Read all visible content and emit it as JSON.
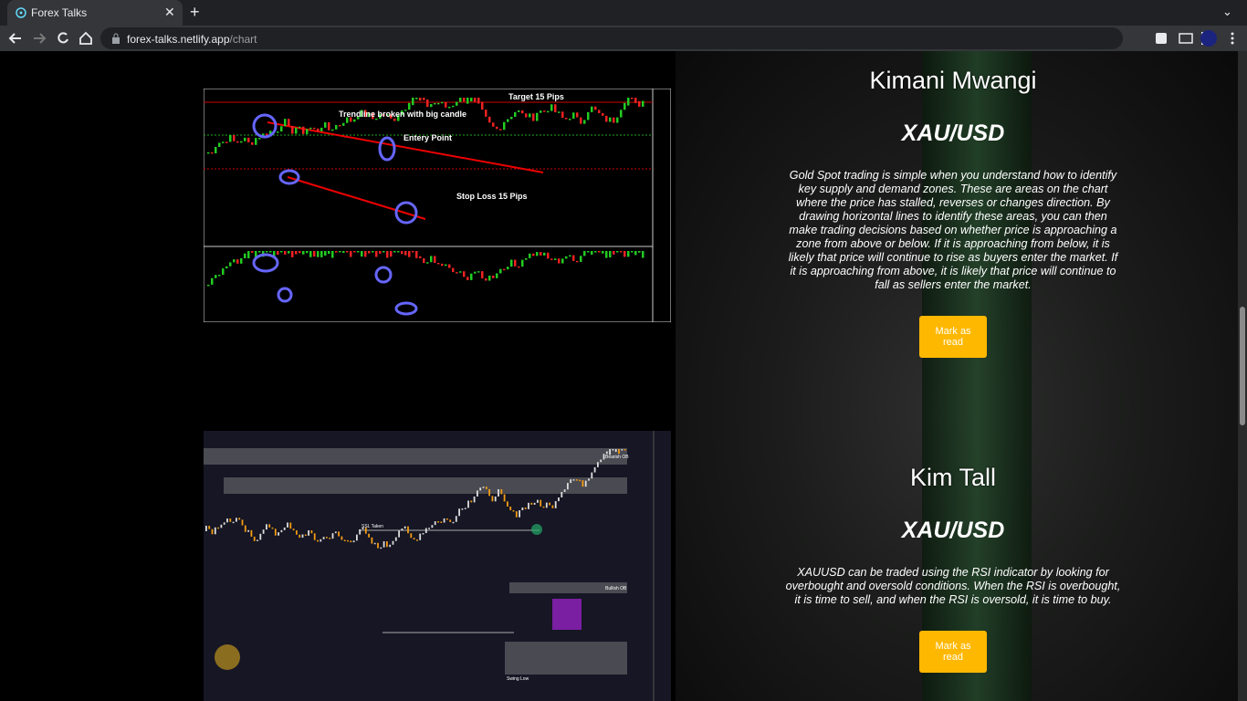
{
  "browser": {
    "tab_title": "Forex Talks",
    "url_host": "forex-talks.netlify.app",
    "url_path": "/chart"
  },
  "images": [
    {
      "annotations": [
        "Target 15 Pips",
        "Trendline broken with big candle",
        "Entery Point",
        "Stop Loss 15 Pips"
      ]
    },
    {
      "annotations": [
        "Bearish OB",
        "Bullish OB",
        "SSL Taken",
        "Swing Low"
      ]
    }
  ],
  "posts": [
    {
      "author": "Kimani Mwangi",
      "pair": "XAU/USD",
      "text": "Gold Spot trading is simple when you understand how to identify key supply and demand zones. These are areas on the chart where the price has stalled, reverses or changes direction. By drawing horizontal lines to identify these areas, you can then make trading decisions based on whether price is approaching a zone from above or below. If it is approaching from below, it is likely that price will continue to rise as buyers enter the market. If it is approaching from above, it is likely that price will continue to fall as sellers enter the market.",
      "button": "Mark as read"
    },
    {
      "author": "Kim Tall",
      "pair": "XAU/USD",
      "text": "XAUUSD can be traded using the RSI indicator by looking for overbought and oversold conditions. When the RSI is overbought, it is time to sell, and when the RSI is oversold, it is time to buy.",
      "button": "Mark as read"
    }
  ]
}
